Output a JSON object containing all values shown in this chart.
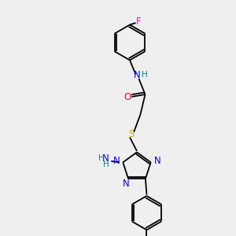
{
  "background_color": "#efefef",
  "atom_colors": {
    "C": "#000000",
    "N": "#0000ff",
    "O": "#ff0000",
    "S": "#ccaa00",
    "F": "#ff00cc",
    "H": "#008888"
  },
  "figsize": [
    3.0,
    3.0
  ],
  "dpi": 100,
  "bond_lw": 1.3,
  "font_size": 8.5
}
